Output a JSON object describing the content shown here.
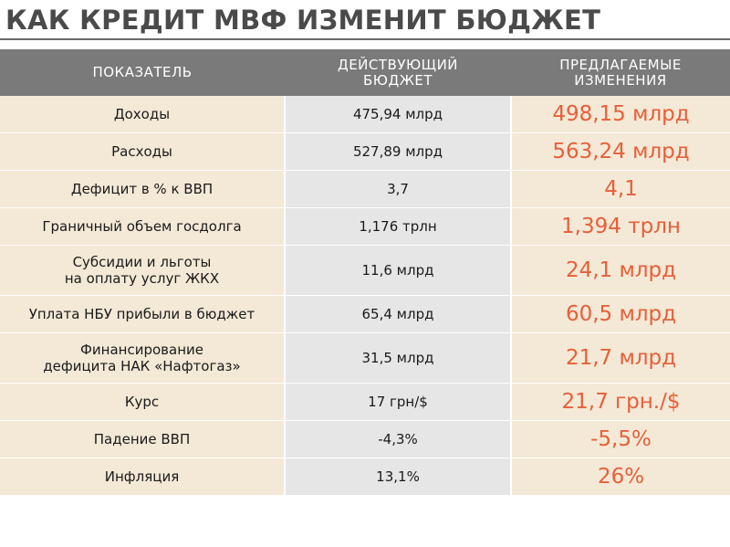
{
  "title": "КАК КРЕДИТ МВФ ИЗМЕНИТ БЮДЖЕТ",
  "columns": {
    "indicator": "ПОКАЗАТЕЛЬ",
    "current_line1": "ДЕЙСТВУЮЩИЙ",
    "current_line2": "БЮДЖЕТ",
    "proposed_line1": "ПРЕДЛАГАЕМЫЕ",
    "proposed_line2": "ИЗМЕНЕНИЯ"
  },
  "rows": [
    {
      "indicator_l1": "Доходы",
      "indicator_l2": "",
      "current": "475,94 млрд",
      "proposed": "498,15 млрд"
    },
    {
      "indicator_l1": "Расходы",
      "indicator_l2": "",
      "current": "527,89 млрд",
      "proposed": "563,24 млрд"
    },
    {
      "indicator_l1": "Дефицит в % к ВВП",
      "indicator_l2": "",
      "current": "3,7",
      "proposed": "4,1"
    },
    {
      "indicator_l1": "Граничный объем госдолга",
      "indicator_l2": "",
      "current": "1,176 трлн",
      "proposed": "1,394 трлн"
    },
    {
      "indicator_l1": "Субсидии и льготы",
      "indicator_l2": "на оплату услуг ЖКХ",
      "current": "11,6 млрд",
      "proposed": "24,1 млрд"
    },
    {
      "indicator_l1": "Уплата НБУ прибыли в бюджет",
      "indicator_l2": "",
      "current": "65,4 млрд",
      "proposed": "60,5 млрд"
    },
    {
      "indicator_l1": "Финансирование",
      "indicator_l2": "дефицита НАК «Нафтогаз»",
      "current": "31,5 млрд",
      "proposed": "21,7 млрд"
    },
    {
      "indicator_l1": "Курс",
      "indicator_l2": "",
      "current": "17 грн/$",
      "proposed": "21,7 грн./$"
    },
    {
      "indicator_l1": "Падение ВВП",
      "indicator_l2": "",
      "current": "-4,3%",
      "proposed": "-5,5%"
    },
    {
      "indicator_l1": "Инфляция",
      "indicator_l2": "",
      "current": "13,1%",
      "proposed": "26%"
    }
  ],
  "colors": {
    "header_bg": "#7a7a7a",
    "row_bg": "#f4e8d6",
    "middle_col_bg": "#e6e6e6",
    "proposed_text": "#e6603a",
    "title_text": "#4a4a4a"
  }
}
